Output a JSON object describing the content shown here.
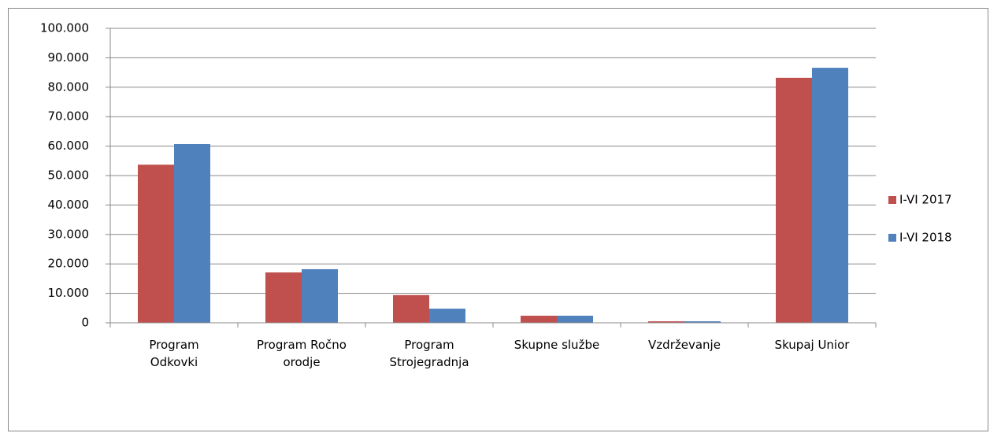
{
  "chart_data": {
    "type": "bar",
    "categories": [
      "Program Odkovki",
      "Program Ročno orodje",
      "Program Strojegradnja",
      "Skupne službe",
      "Vzdrževanje",
      "Skupaj Unior"
    ],
    "series": [
      {
        "name": "I-VI 2017",
        "color": "#c0504d",
        "values": [
          53700,
          17100,
          9400,
          2400,
          500,
          83200
        ]
      },
      {
        "name": "I-VI 2018",
        "color": "#4f81bd",
        "values": [
          60700,
          18200,
          4800,
          2400,
          500,
          86600
        ]
      }
    ],
    "ylim": [
      0,
      100000
    ],
    "yticks": [
      0,
      {
        "value": 10000,
        "label": "10.000"
      },
      {
        "value": 20000,
        "label": "20.000"
      },
      {
        "value": 30000,
        "label": "30.000"
      },
      {
        "value": 40000,
        "label": "40.000"
      },
      {
        "value": 50000,
        "label": "50.000"
      },
      {
        "value": 60000,
        "label": "60.000"
      },
      {
        "value": 70000,
        "label": "70.000"
      },
      {
        "value": 80000,
        "label": "80.000"
      },
      {
        "value": 90000,
        "label": "90.000"
      },
      {
        "value": 100000,
        "label": "100.000"
      }
    ],
    "grid": true,
    "legend": "right"
  }
}
